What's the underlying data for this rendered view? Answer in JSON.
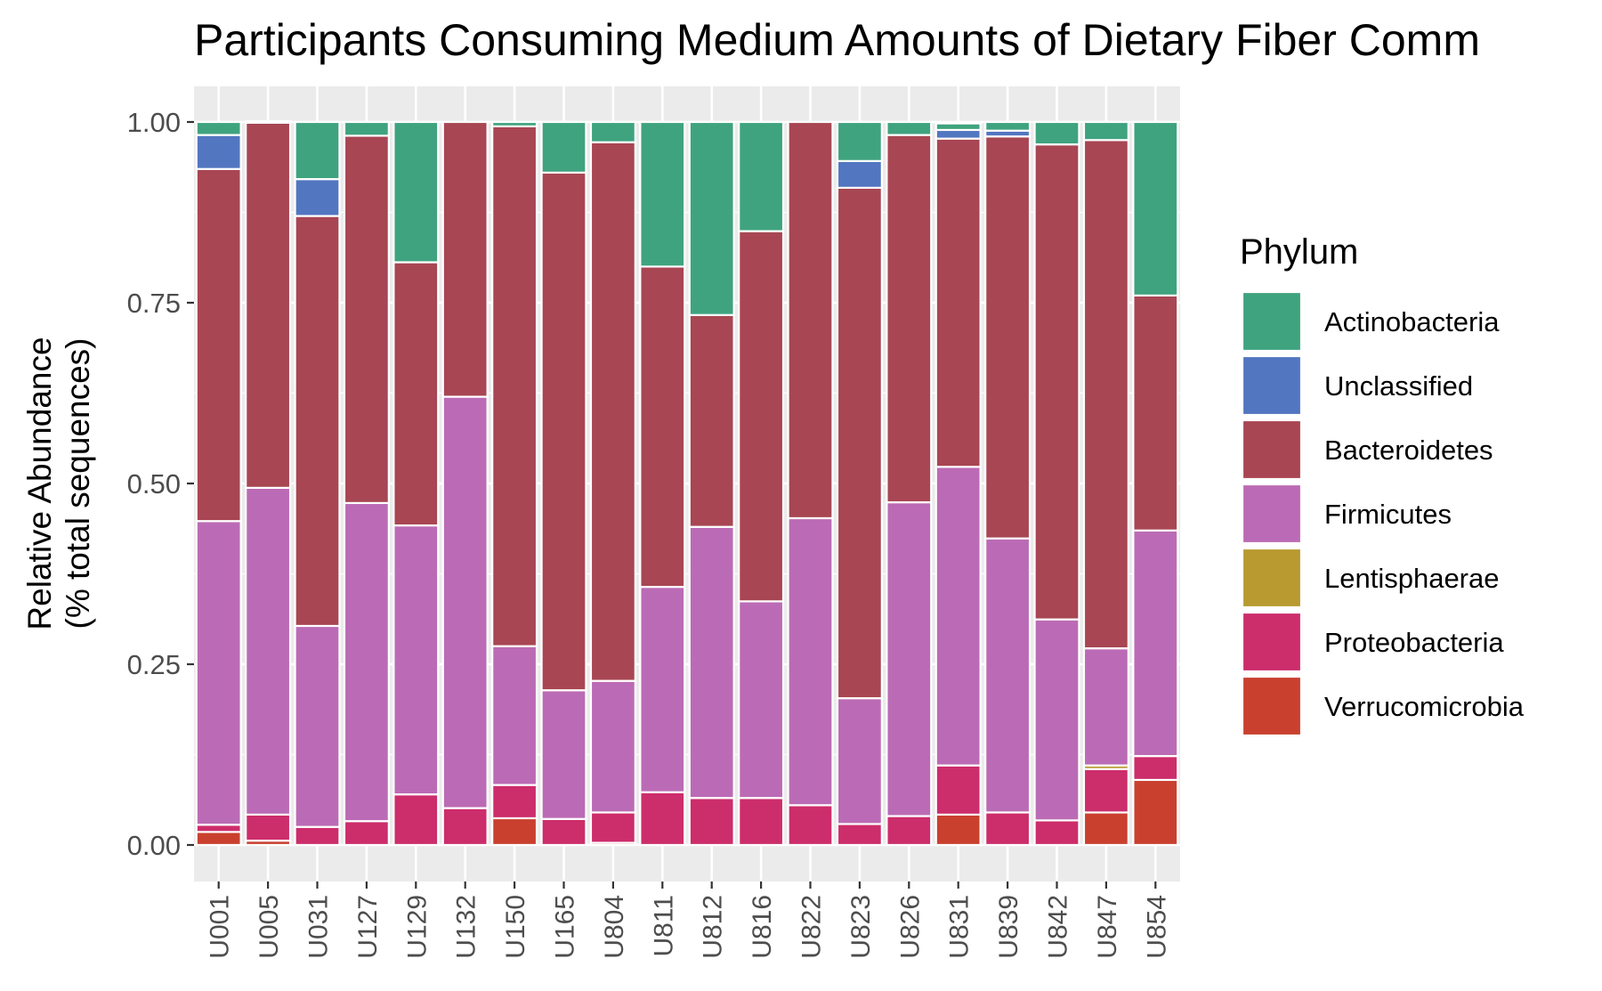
{
  "chart_data": {
    "type": "bar",
    "stacked": true,
    "title": "Participants Consuming Medium Amounts of Dietary Fiber Comm",
    "ylabel_lines": [
      "Relative Abundance",
      "(% total sequences)"
    ],
    "xlabel": "",
    "ylim": [
      0,
      1.0
    ],
    "y_ticks": [
      "0.00",
      "0.25",
      "0.50",
      "0.75",
      "1.00"
    ],
    "y_tick_values": [
      0,
      0.25,
      0.5,
      0.75,
      1.0
    ],
    "grid": true,
    "legend_position": "right",
    "legend_title": "Phylum",
    "categories": [
      "U001",
      "U005",
      "U031",
      "U127",
      "U129",
      "U132",
      "U150",
      "U165",
      "U804",
      "U811",
      "U812",
      "U816",
      "U822",
      "U823",
      "U826",
      "U831",
      "U839",
      "U842",
      "U847",
      "U854"
    ],
    "series": [
      {
        "name": "Verrucomicrobia",
        "color": "#c9402f",
        "values": [
          0.018,
          0.006,
          0,
          0,
          0,
          0,
          0.037,
          0,
          0.003,
          0,
          0,
          0,
          0,
          0,
          0,
          0.042,
          0,
          0,
          0.045,
          0.09
        ]
      },
      {
        "name": "Proteobacteria",
        "color": "#cc2d6b",
        "values": [
          0.01,
          0.036,
          0.025,
          0.033,
          0.07,
          0.051,
          0.046,
          0.036,
          0.042,
          0.073,
          0.065,
          0.065,
          0.055,
          0.029,
          0.04,
          0.068,
          0.045,
          0.034,
          0.06,
          0.033
        ]
      },
      {
        "name": "Lentisphaerae",
        "color": "#b89a30",
        "values": [
          0,
          0,
          0,
          0,
          0,
          0,
          0,
          0,
          0,
          0,
          0,
          0,
          0,
          0,
          0,
          0,
          0,
          0,
          0.005,
          0
        ]
      },
      {
        "name": "Firmicutes",
        "color": "#bb6bb5",
        "values": [
          0.42,
          0.452,
          0.278,
          0.44,
          0.372,
          0.569,
          0.192,
          0.178,
          0.182,
          0.284,
          0.375,
          0.272,
          0.397,
          0.174,
          0.434,
          0.413,
          0.379,
          0.278,
          0.162,
          0.312
        ]
      },
      {
        "name": "Bacteroidetes",
        "color": "#a84653",
        "values": [
          0.487,
          0.505,
          0.567,
          0.508,
          0.364,
          0.38,
          0.719,
          0.716,
          0.745,
          0.443,
          0.293,
          0.512,
          0.548,
          0.706,
          0.508,
          0.454,
          0.556,
          0.657,
          0.703,
          0.325
        ]
      },
      {
        "name": "Unclassified",
        "color": "#5276c0",
        "values": [
          0.047,
          0.002,
          0.051,
          0,
          0,
          0,
          0,
          0,
          0,
          0,
          0,
          0,
          0,
          0.037,
          0,
          0.012,
          0.008,
          0,
          0,
          0
        ]
      },
      {
        "name": "Actinobacteria",
        "color": "#3fa37f",
        "values": [
          0.018,
          0,
          0.079,
          0.019,
          0.194,
          0,
          0.006,
          0.07,
          0.028,
          0.2,
          0.267,
          0.151,
          0,
          0.054,
          0.018,
          0.009,
          0.012,
          0.031,
          0.025,
          0.24
        ]
      }
    ],
    "legend_order": [
      "Actinobacteria",
      "Unclassified",
      "Bacteroidetes",
      "Firmicutes",
      "Lentisphaerae",
      "Proteobacteria",
      "Verrucomicrobia"
    ]
  }
}
